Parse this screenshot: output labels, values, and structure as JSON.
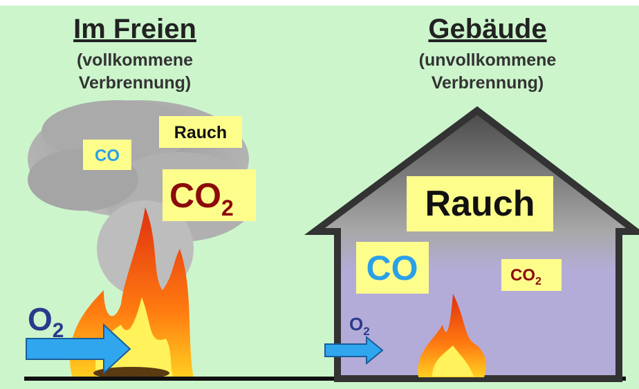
{
  "left": {
    "title": "Im Freien",
    "subtitle": [
      "(vollkommene",
      "Verbrennung)"
    ],
    "labels": {
      "co": "CO",
      "rauch": "Rauch",
      "co2": {
        "main": "CO",
        "sub": "2"
      }
    },
    "oxygen": {
      "main": "O",
      "sub": "2"
    }
  },
  "right": {
    "title": "Gebäude",
    "subtitle": [
      "(unvollkommene",
      "Verbrennung)"
    ],
    "labels": {
      "rauch": "Rauch",
      "co": "CO",
      "co2": {
        "main": "CO",
        "sub": "2"
      }
    },
    "oxygen": {
      "main": "O",
      "sub": "2"
    }
  }
}
